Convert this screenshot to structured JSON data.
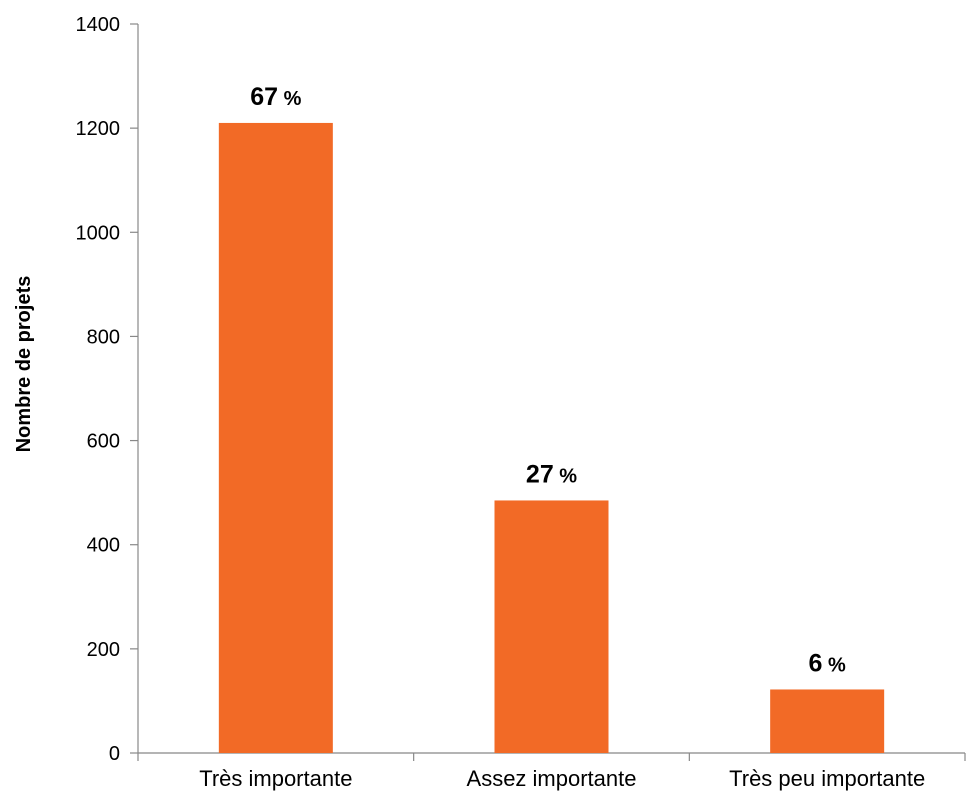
{
  "chart_data": {
    "type": "bar",
    "categories": [
      "Très importante",
      "Assez importante",
      "Très peu importante"
    ],
    "values": [
      1210,
      485,
      122
    ],
    "data_labels": [
      {
        "number": "67",
        "unit": "%"
      },
      {
        "number": "27",
        "unit": "%"
      },
      {
        "number": "6",
        "unit": "%"
      }
    ],
    "title": "",
    "xlabel": "",
    "ylabel": "Nombre de projets",
    "ylim": [
      0,
      1400
    ],
    "yticks": [
      0,
      200,
      400,
      600,
      800,
      1000,
      1200,
      1400
    ],
    "ytick_labels": [
      "0",
      "200",
      "400",
      "600",
      "800",
      "1000",
      "1200",
      "1400"
    ],
    "grid": false,
    "bar_color": "#F26A26"
  }
}
